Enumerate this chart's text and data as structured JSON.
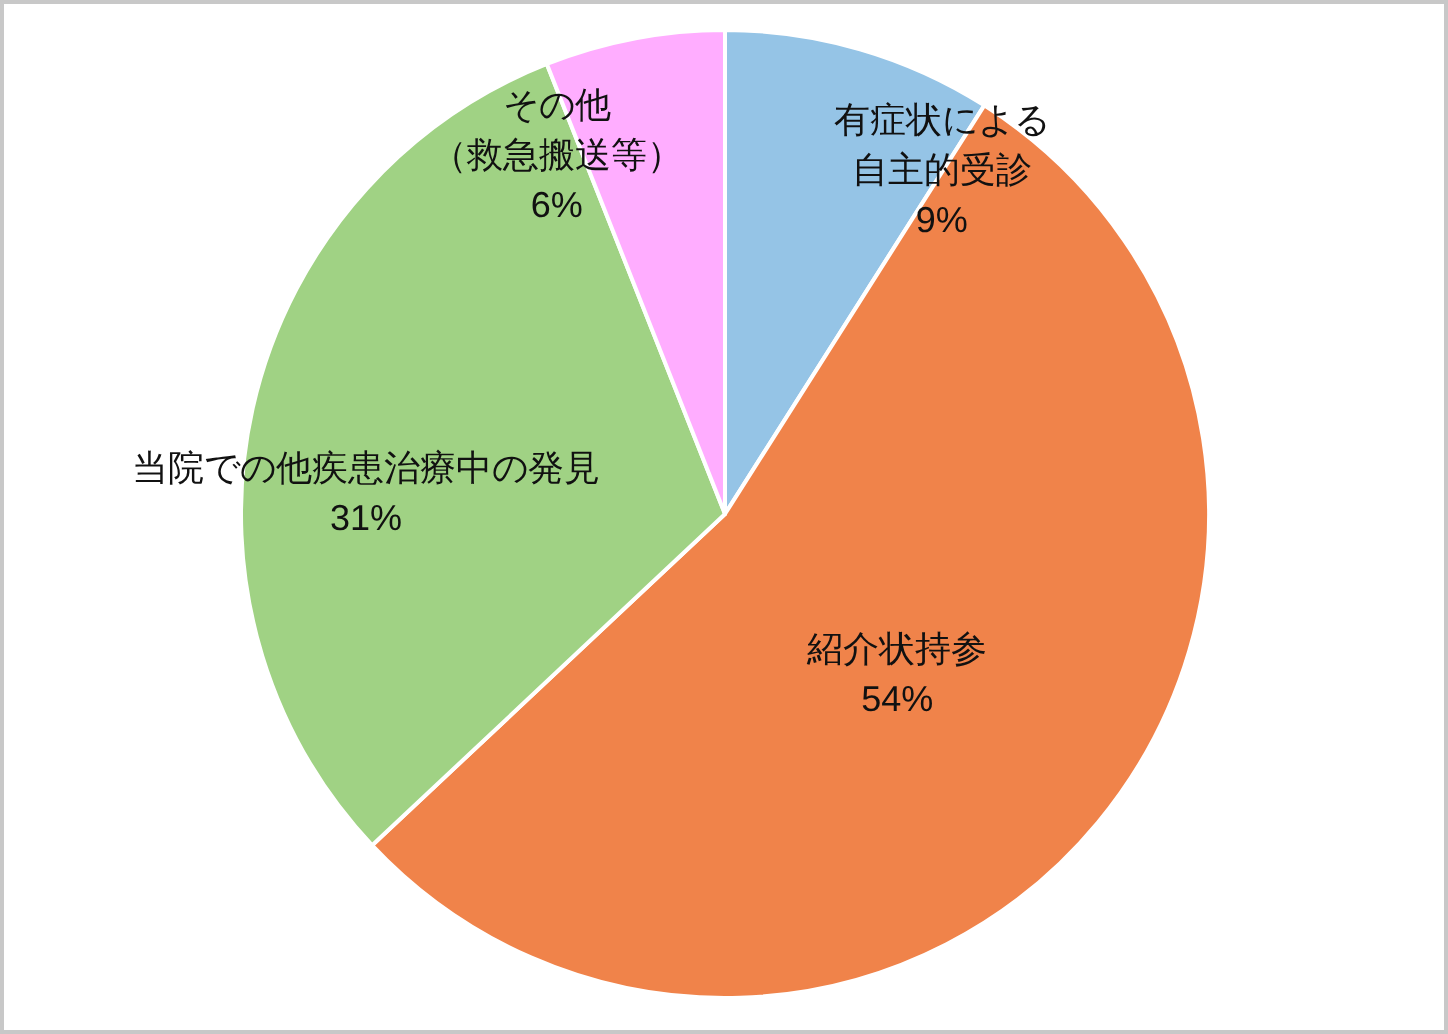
{
  "chart_data": {
    "type": "pie",
    "categories": [
      "有症状による自主的受診",
      "紹介状持参",
      "当院での他疾患治療中の発見",
      "その他（救急搬送等）"
    ],
    "values": [
      9,
      54,
      31,
      6
    ],
    "colors": [
      "#95c4e6",
      "#f0834a",
      "#a0d284",
      "#ffadff"
    ],
    "value_labels": [
      "9%",
      "54%",
      "31%",
      "6%"
    ]
  }
}
